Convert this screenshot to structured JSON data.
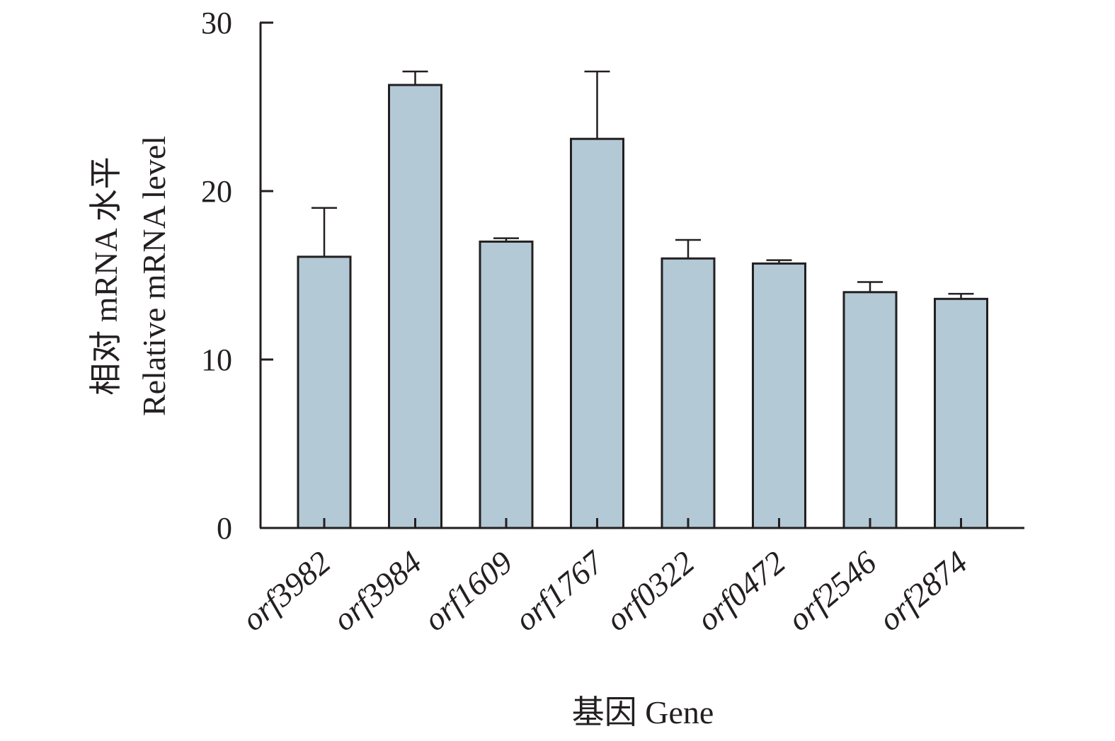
{
  "chart_data": {
    "type": "bar",
    "categories": [
      "orf3982",
      "orf3984",
      "orf1609",
      "orf1767",
      "orf0322",
      "orf0472",
      "orf2546",
      "orf2874"
    ],
    "values": [
      16.1,
      26.3,
      17.0,
      23.1,
      16.0,
      15.7,
      14.0,
      13.6
    ],
    "errors": [
      2.9,
      0.8,
      0.2,
      4.0,
      1.1,
      0.2,
      0.6,
      0.3
    ],
    "xlabel": "基因 Gene",
    "ylabel_line1": "相对 mRNA 水平",
    "ylabel_line2": "Relative mRNA level",
    "ylim": [
      0,
      30
    ],
    "yticks": [
      0,
      10,
      20,
      30
    ],
    "bar_color": "#b3c9d5",
    "grid": false
  }
}
